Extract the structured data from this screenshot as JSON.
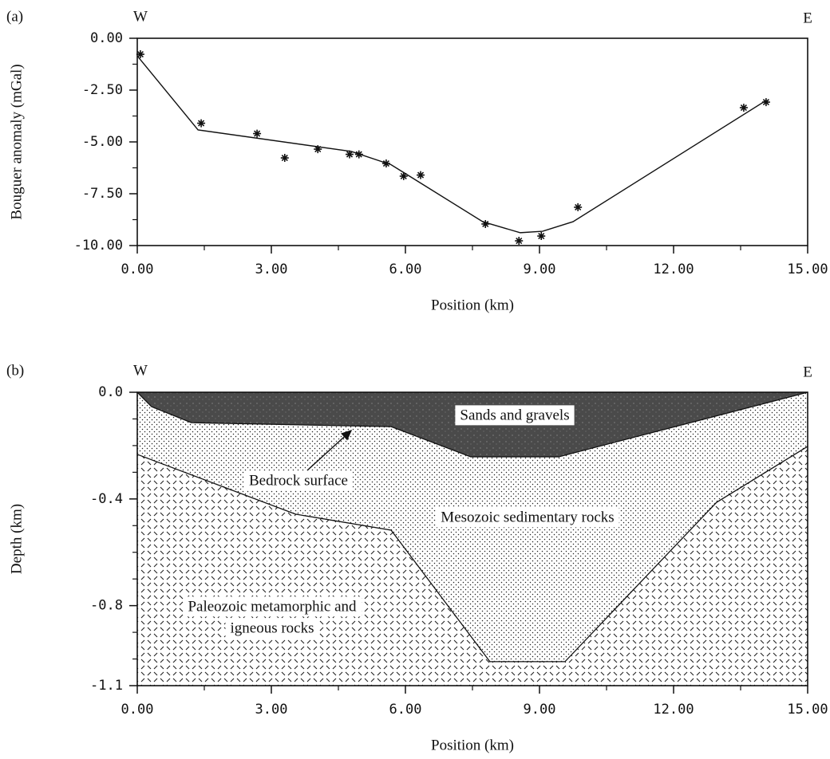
{
  "chart_data": [
    {
      "type": "scatter",
      "panel_label": "(a)",
      "left_label": "W",
      "right_label": "E",
      "xlabel": "Position (km)",
      "ylabel": "Bouguer anomaly (mGal)",
      "xlim": [
        0,
        15
      ],
      "ylim": [
        -10,
        0
      ],
      "xticks": [
        {
          "value": 0,
          "label": "0.00"
        },
        {
          "value": 3,
          "label": "3.00"
        },
        {
          "value": 6,
          "label": "6.00"
        },
        {
          "value": 9,
          "label": "9.00"
        },
        {
          "value": 12,
          "label": "12.00"
        },
        {
          "value": 15,
          "label": "15.00"
        }
      ],
      "minor_xticks": [
        1.5,
        4.5,
        7.5,
        10.5,
        13.5
      ],
      "yticks": [
        {
          "value": 0,
          "label": "0.00"
        },
        {
          "value": -2.5,
          "label": "-2.50"
        },
        {
          "value": -5,
          "label": "-5.00"
        },
        {
          "value": -7.5,
          "label": "-7.50"
        },
        {
          "value": -10,
          "label": "-10.00"
        }
      ],
      "minor_yticks": [
        -1.25,
        -3.75,
        -6.25,
        -8.75
      ],
      "series": [
        {
          "type": "scatter",
          "marker": "*",
          "color": "#111",
          "x": [
            0.07,
            1.43,
            2.68,
            3.3,
            4.04,
            4.75,
            4.96,
            5.57,
            5.96,
            6.34,
            7.79,
            8.54,
            9.04,
            9.86,
            13.57,
            14.07
          ],
          "values": [
            -0.77,
            -4.1,
            -4.6,
            -5.77,
            -5.35,
            -5.6,
            -5.6,
            -6.04,
            -6.65,
            -6.6,
            -8.96,
            -9.77,
            -9.54,
            -8.15,
            -3.35,
            -3.08
          ]
        },
        {
          "type": "line",
          "color": "#111",
          "x": [
            0,
            1.36,
            4.79,
            5.68,
            7.73,
            8.57,
            9.07,
            9.75,
            14.07
          ],
          "values": [
            -0.85,
            -4.42,
            -5.46,
            -6.1,
            -8.85,
            -9.38,
            -9.31,
            -8.85,
            -3.0
          ]
        }
      ]
    },
    {
      "type": "area",
      "panel_label": "(b)",
      "left_label": "W",
      "right_label": "E",
      "xlabel": "Position (km)",
      "ylabel": "Depth (km)",
      "xlim": [
        0,
        15
      ],
      "ylim": [
        -1.1,
        0
      ],
      "xticks": [
        {
          "value": 0,
          "label": "0.00"
        },
        {
          "value": 3,
          "label": "3.00"
        },
        {
          "value": 6,
          "label": "6.00"
        },
        {
          "value": 9,
          "label": "9.00"
        },
        {
          "value": 12,
          "label": "12.00"
        },
        {
          "value": 15,
          "label": "15.00"
        }
      ],
      "minor_xticks": [
        1.5,
        4.5,
        7.5,
        10.5,
        13.5
      ],
      "yticks": [
        {
          "value": 0,
          "label": "0.0"
        },
        -0.4,
        -0.8,
        -1.1
      ],
      "minor_yticks": [
        -0.1,
        -0.2,
        -0.3,
        -0.5,
        -0.6,
        -0.7,
        -0.9,
        -1.0
      ],
      "series": [
        {
          "name": "Sands and gravels",
          "fill": "dark",
          "x": [
            0,
            0.32,
            1.21,
            5.68,
            7.46,
            9.43,
            15
          ],
          "values": [
            0,
            -0.054,
            -0.114,
            -0.129,
            -0.242,
            -0.242,
            0
          ]
        },
        {
          "name": "Mesozoic sedimentary rocks",
          "fill": "dots",
          "x": [
            0,
            3.54,
            5.68,
            7.89,
            9.57,
            12.96,
            15
          ],
          "values": [
            -0.233,
            -0.457,
            -0.517,
            -1.01,
            -1.01,
            -0.413,
            -0.203
          ]
        }
      ],
      "basement": {
        "name_lines": [
          "Paleozoic metamorphic and",
          "igneous rocks"
        ],
        "fill": "hatch"
      },
      "annotation": "Bedrock surface"
    }
  ]
}
